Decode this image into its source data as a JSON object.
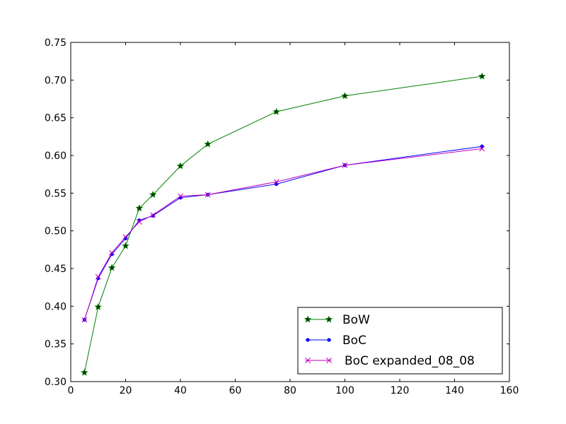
{
  "chart_data": {
    "type": "line",
    "title": "",
    "xlabel": "",
    "ylabel": "",
    "xlim": [
      0,
      160
    ],
    "ylim": [
      0.3,
      0.75
    ],
    "xticks": [
      "0",
      "20",
      "40",
      "60",
      "80",
      "100",
      "120",
      "140",
      "160"
    ],
    "yticks": [
      "0.30",
      "0.35",
      "0.40",
      "0.45",
      "0.50",
      "0.55",
      "0.60",
      "0.65",
      "0.70",
      "0.75"
    ],
    "x": [
      5,
      10,
      15,
      20,
      25,
      30,
      40,
      50,
      75,
      100,
      150
    ],
    "series": [
      {
        "name": "BoW",
        "marker": "star",
        "color": "#008000",
        "marker_fill": "#003300",
        "values": [
          0.312,
          0.399,
          0.451,
          0.48,
          0.53,
          0.548,
          0.586,
          0.615,
          0.658,
          0.679,
          0.705
        ]
      },
      {
        "name": "BoC",
        "marker": "dot",
        "color": "#0000ff",
        "marker_fill": "#0000ff",
        "values": [
          0.382,
          0.437,
          0.469,
          0.49,
          0.514,
          0.52,
          0.544,
          0.548,
          0.562,
          0.587,
          0.612
        ]
      },
      {
        "name": "BoC expanded_08_08",
        "marker": "x",
        "color": "#bf00bf",
        "marker_fill": "#bf00bf",
        "values": [
          0.382,
          0.439,
          0.471,
          0.492,
          0.512,
          0.521,
          0.546,
          0.548,
          0.565,
          0.587,
          0.609
        ]
      }
    ],
    "grid": false,
    "legend_position": "bottom-right"
  }
}
